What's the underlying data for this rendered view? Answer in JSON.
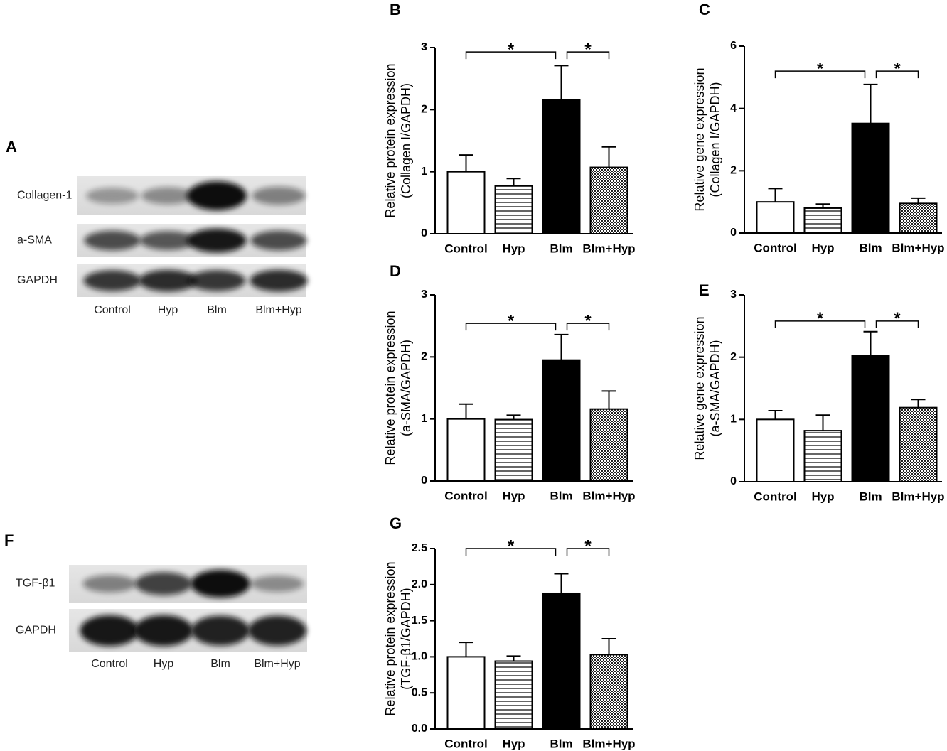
{
  "chart_data": [
    {
      "type": "bar",
      "panel": "B",
      "ylabel": [
        "Relative protein expression",
        "(Collagen I/GAPDH)"
      ],
      "categories": [
        "Control",
        "Hyp",
        "Blm",
        "Blm+Hyp"
      ],
      "values": [
        1.0,
        0.77,
        2.16,
        1.07
      ],
      "errors": [
        0.27,
        0.12,
        0.55,
        0.33
      ],
      "patterns": [
        "open",
        "horizontal-lines",
        "solid",
        "checker"
      ],
      "ylim": [
        0,
        3
      ],
      "yticks": [
        0,
        1,
        2,
        3
      ],
      "annotations": [
        {
          "from": "Control",
          "to": "Blm",
          "y": 2.93,
          "text": "*"
        },
        {
          "from": "Blm",
          "to": "Blm+Hyp",
          "y": 2.93,
          "text": "*"
        }
      ]
    },
    {
      "type": "bar",
      "panel": "C",
      "ylabel": [
        "Relative gene expression",
        "(Collagen I/GAPDH)"
      ],
      "categories": [
        "Control",
        "Hyp",
        "Blm",
        "Blm+Hyp"
      ],
      "values": [
        1.0,
        0.8,
        3.52,
        0.95
      ],
      "errors": [
        0.43,
        0.13,
        1.25,
        0.17
      ],
      "patterns": [
        "open",
        "horizontal-lines",
        "solid",
        "checker"
      ],
      "ylim": [
        0,
        6
      ],
      "yticks": [
        0,
        2,
        4,
        6
      ],
      "annotations": [
        {
          "from": "Control",
          "to": "Blm",
          "y": 5.2,
          "text": "*"
        },
        {
          "from": "Blm",
          "to": "Blm+Hyp",
          "y": 5.2,
          "text": "*"
        }
      ]
    },
    {
      "type": "bar",
      "panel": "D",
      "ylabel": [
        "Relative protein expression",
        "(a-SMA/GAPDH)"
      ],
      "categories": [
        "Control",
        "Hyp",
        "Blm",
        "Blm+Hyp"
      ],
      "values": [
        1.0,
        0.99,
        1.95,
        1.16
      ],
      "errors": [
        0.24,
        0.07,
        0.41,
        0.29
      ],
      "patterns": [
        "open",
        "horizontal-lines",
        "solid",
        "checker"
      ],
      "ylim": [
        0,
        3
      ],
      "yticks": [
        0,
        1,
        2,
        3
      ],
      "annotations": [
        {
          "from": "Control",
          "to": "Blm",
          "y": 2.54,
          "text": "*"
        },
        {
          "from": "Blm",
          "to": "Blm+Hyp",
          "y": 2.54,
          "text": "*"
        }
      ]
    },
    {
      "type": "bar",
      "panel": "E",
      "ylabel": [
        "Relative gene expression",
        "(a-SMA/GAPDH)"
      ],
      "categories": [
        "Control",
        "Hyp",
        "Blm",
        "Blm+Hyp"
      ],
      "values": [
        1.0,
        0.82,
        2.03,
        1.19
      ],
      "errors": [
        0.14,
        0.25,
        0.38,
        0.13
      ],
      "patterns": [
        "open",
        "horizontal-lines",
        "solid",
        "checker"
      ],
      "ylim": [
        0,
        3
      ],
      "yticks": [
        0,
        1,
        2,
        3
      ],
      "annotations": [
        {
          "from": "Control",
          "to": "Blm",
          "y": 2.58,
          "text": "*"
        },
        {
          "from": "Blm",
          "to": "Blm+Hyp",
          "y": 2.58,
          "text": "*"
        }
      ]
    },
    {
      "type": "bar",
      "panel": "G",
      "ylabel": [
        "Relative protein expression",
        "(TGF-β1/GAPDH)"
      ],
      "categories": [
        "Control",
        "Hyp",
        "Blm",
        "Blm+Hyp"
      ],
      "values": [
        1.0,
        0.94,
        1.88,
        1.03
      ],
      "errors": [
        0.2,
        0.07,
        0.27,
        0.22
      ],
      "patterns": [
        "open",
        "horizontal-lines",
        "solid",
        "checker"
      ],
      "ylim": [
        0,
        2.5
      ],
      "yticks": [
        {
          "value": 0,
          "label": "0.0"
        },
        0.5,
        {
          "value": 1,
          "label": "1.0"
        },
        1.5,
        {
          "value": 2,
          "label": "2.0"
        },
        2.5
      ],
      "annotations": [
        {
          "from": "Control",
          "to": "Blm",
          "y": 2.5,
          "text": "*"
        },
        {
          "from": "Blm",
          "to": "Blm+Hyp",
          "y": 2.5,
          "text": "*"
        }
      ]
    }
  ],
  "blots": [
    {
      "panel": "A",
      "rows": [
        "Collagen-1",
        "a-SMA",
        "GAPDH"
      ],
      "lanes": [
        "Control",
        "Hyp",
        "Blm",
        "Blm+Hyp"
      ]
    },
    {
      "panel": "F",
      "rows": [
        "TGF-β1",
        "GAPDH"
      ],
      "lanes": [
        "Control",
        "Hyp",
        "Blm",
        "Blm+Hyp"
      ]
    }
  ]
}
